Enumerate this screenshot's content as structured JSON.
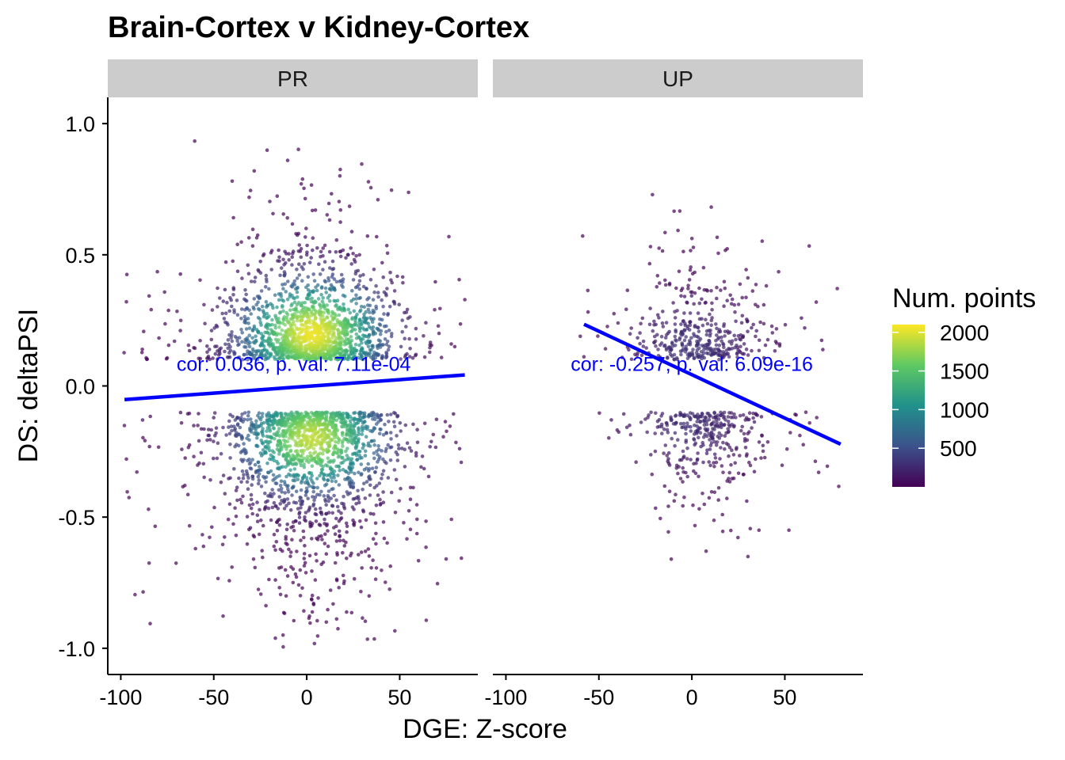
{
  "chart_data": {
    "type": "scatter",
    "title": "Brain-Cortex v Kidney-Cortex",
    "xlabel": "DGE: Z-score",
    "ylabel": "DS: deltaPSI",
    "xlim": [
      -107,
      92
    ],
    "ylim": [
      -1.1,
      1.1
    ],
    "x_ticks": [
      -100,
      -50,
      0,
      50
    ],
    "x_tick_labels": [
      "-100",
      "-50",
      "0",
      "50"
    ],
    "y_ticks": [
      1.0,
      0.5,
      0.0,
      -0.5,
      -1.0
    ],
    "y_tick_labels": [
      "1.0",
      "0.5",
      "0.0",
      "-0.5",
      "-1.0"
    ],
    "grid": false,
    "legend": {
      "title": "Num. points",
      "position": "right",
      "ticks": [
        500,
        1000,
        1500,
        2000
      ],
      "tick_labels": [
        "500",
        "1000",
        "1500",
        "2000"
      ],
      "range": [
        0,
        2100
      ],
      "colormap": "viridis",
      "colors": [
        "#440154",
        "#3b528b",
        "#21918c",
        "#5ec962",
        "#fde725"
      ]
    },
    "fit_line_color": "#0000ff",
    "annotation_color": "#0000ff",
    "panels": [
      {
        "name": "PR",
        "fit_line": {
          "x": [
            -98,
            85
          ],
          "y": [
            -0.052,
            0.042
          ]
        },
        "annotation": {
          "text": "cor: 0.036, p. val: 7.11e-04",
          "x": -7,
          "y": 0.07
        },
        "clusters": [
          {
            "n": 1700,
            "x_center": 3,
            "x_sd": 22,
            "y_min": 0.1,
            "y_max": 0.95,
            "y_decay": 0.14,
            "x_range": [
              -100,
              85
            ]
          },
          {
            "n": 1700,
            "x_center": 3,
            "x_sd": 22,
            "y_min": -0.1,
            "y_max": -1.0,
            "y_decay": 0.2,
            "x_range": [
              -100,
              85
            ]
          }
        ],
        "density_peaks": [
          {
            "x": 3,
            "y": 0.2,
            "peak": 2050
          },
          {
            "x": 3,
            "y": -0.2,
            "peak": 1900
          }
        ]
      },
      {
        "name": "UP",
        "fit_line": {
          "x": [
            -58,
            80
          ],
          "y": [
            0.235,
            -0.222
          ]
        },
        "annotation": {
          "text": "cor: -0.257, p. val: 6.09e-16",
          "x": 0,
          "y": 0.07
        },
        "clusters": [
          {
            "n": 420,
            "x_center": 2,
            "x_sd": 18,
            "y_min": 0.1,
            "y_max": 0.92,
            "y_decay": 0.12,
            "x_range": [
              -60,
              80
            ]
          },
          {
            "n": 360,
            "x_center": 5,
            "x_sd": 17,
            "y_min": -0.1,
            "y_max": -0.97,
            "y_decay": 0.13,
            "x_range": [
              -60,
              82
            ]
          }
        ],
        "density_peaks": [
          {
            "x": 0,
            "y": 0.13,
            "peak": 320
          },
          {
            "x": 0,
            "y": -0.13,
            "peak": 280
          }
        ]
      }
    ]
  }
}
